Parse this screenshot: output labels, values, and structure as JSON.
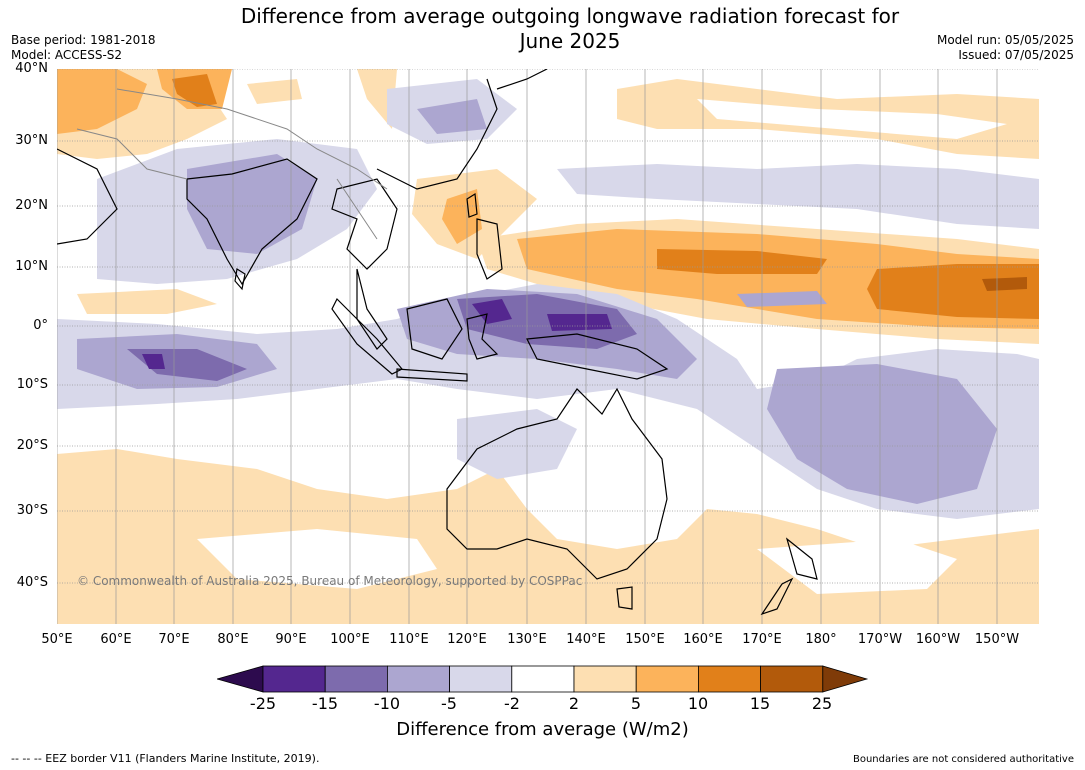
{
  "title_line1": "Difference from average outgoing longwave radiation forecast for",
  "title_line2": "June 2025",
  "base_period": "Base period: 1981-2018",
  "model": "Model: ACCESS-S2",
  "model_run": "Model run: 05/05/2025",
  "issued": "Issued: 07/05/2025",
  "copyright": "© Commonwealth of Australia 2025, Bureau of Meteorology, supported by COSPPac",
  "lat_labels": [
    "40°N",
    "30°N",
    "20°N",
    "10°N",
    "0°",
    "10°S",
    "20°S",
    "30°S",
    "40°S"
  ],
  "lon_labels": [
    "50°E",
    "60°E",
    "70°E",
    "80°E",
    "90°E",
    "100°E",
    "110°E",
    "120°E",
    "130°E",
    "140°E",
    "150°E",
    "160°E",
    "170°E",
    "180°",
    "170°W",
    "160°W",
    "150°W"
  ],
  "colorbar": {
    "label": "Difference from average (W/m2)",
    "ticks": [
      "-25",
      "-15",
      "-10",
      "-5",
      "-2",
      "2",
      "5",
      "10",
      "15",
      "25"
    ],
    "colors": [
      "#2d0b4e",
      "#54278f",
      "#7d6bad",
      "#aca6d0",
      "#d8d8ea",
      "#ffffff",
      "#fddfb2",
      "#fcb35b",
      "#e1801a",
      "#b25a0b",
      "#7f3b08"
    ]
  },
  "footer_left": "-- -- -- EEZ border V11 (Flanders Marine Institute, 2019).",
  "footer_right": "Boundaries are not considered authoritative"
}
